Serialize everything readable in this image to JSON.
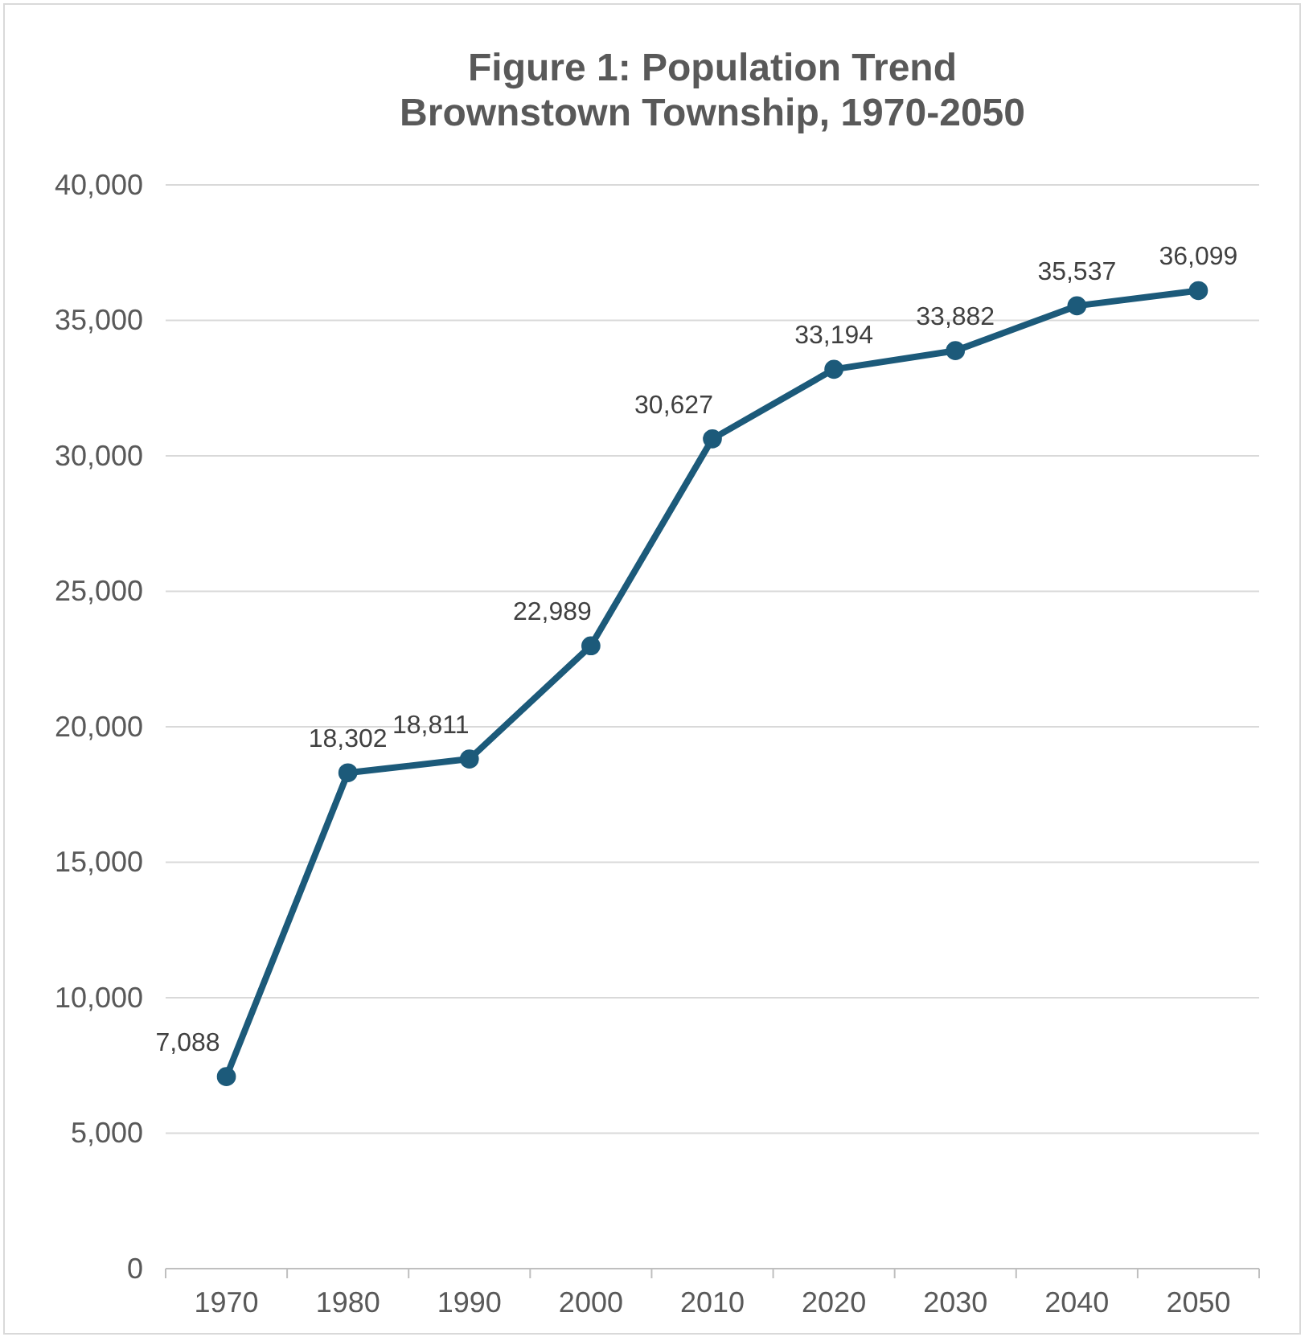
{
  "chart_data": {
    "type": "line",
    "title": "Figure 1: Population Trend\nBrownstown Township, 1970-2050",
    "categories": [
      "1970",
      "1980",
      "1990",
      "2000",
      "2010",
      "2020",
      "2030",
      "2040",
      "2050"
    ],
    "series": [
      {
        "color": "#1c5a7a",
        "values": [
          7088,
          18302,
          18811,
          22989,
          30627,
          33194,
          33882,
          35537,
          36099
        ],
        "value_labels": [
          "7,088",
          "18,302",
          "18,811",
          "22,989",
          "30,627",
          "33,194",
          "33,882",
          "35,537",
          "36,099"
        ]
      }
    ],
    "ylim": [
      0,
      40000
    ],
    "yticks": [
      {
        "value": 0,
        "label": "0"
      },
      {
        "value": 5000,
        "label": "5,000"
      },
      {
        "value": 10000,
        "label": "10,000"
      },
      {
        "value": 15000,
        "label": "15,000"
      },
      {
        "value": 20000,
        "label": "20,000"
      },
      {
        "value": 25000,
        "label": "25,000"
      },
      {
        "value": 30000,
        "label": "30,000"
      },
      {
        "value": 35000,
        "label": "35,000"
      },
      {
        "value": 40000,
        "label": "40,000"
      }
    ],
    "grid": "y",
    "marker": "circle",
    "line_style": "solid"
  }
}
